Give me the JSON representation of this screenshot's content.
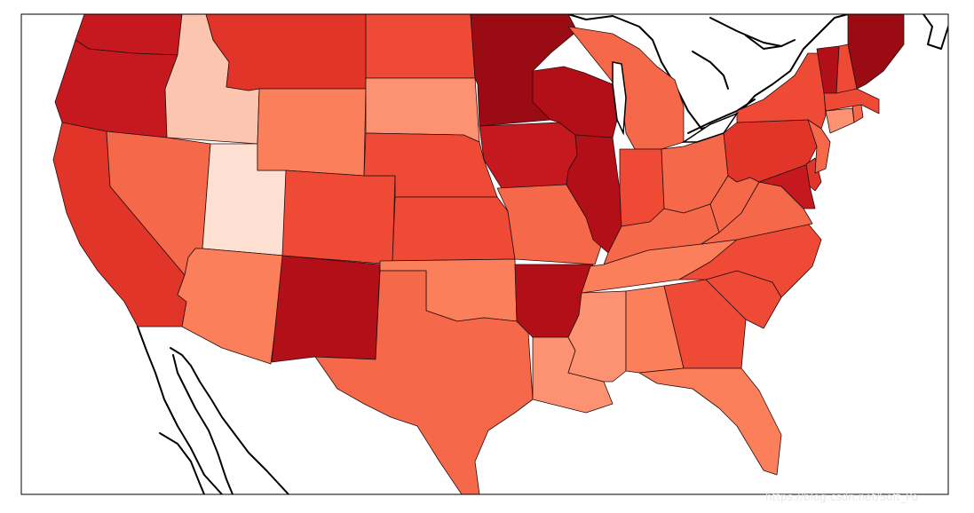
{
  "map": {
    "type": "choropleth",
    "region": "contiguous-united-states",
    "colormap": "Reds",
    "colors": {
      "level1": "#fee0d2",
      "level2": "#fcc5b0",
      "level3": "#fc9272",
      "level4": "#fb7f5b",
      "level5": "#f5694a",
      "level6": "#ef4a36",
      "level7": "#e2352a",
      "level8": "#c6181f",
      "level9": "#b30f18",
      "level10": "#9a0b13"
    },
    "states": [
      {
        "id": "WA",
        "level": "level8"
      },
      {
        "id": "OR",
        "level": "level8"
      },
      {
        "id": "CA",
        "level": "level7"
      },
      {
        "id": "ID",
        "level": "level2"
      },
      {
        "id": "NV",
        "level": "level5"
      },
      {
        "id": "UT",
        "level": "level1"
      },
      {
        "id": "AZ",
        "level": "level4"
      },
      {
        "id": "MT",
        "level": "level7"
      },
      {
        "id": "WY",
        "level": "level4"
      },
      {
        "id": "CO",
        "level": "level6"
      },
      {
        "id": "NM",
        "level": "level9"
      },
      {
        "id": "ND",
        "level": "level6"
      },
      {
        "id": "SD",
        "level": "level3"
      },
      {
        "id": "NE",
        "level": "level6"
      },
      {
        "id": "KS",
        "level": "level6"
      },
      {
        "id": "OK",
        "level": "level4"
      },
      {
        "id": "TX",
        "level": "level5"
      },
      {
        "id": "MN",
        "level": "level10"
      },
      {
        "id": "IA",
        "level": "level8"
      },
      {
        "id": "MO",
        "level": "level5"
      },
      {
        "id": "AR",
        "level": "level9"
      },
      {
        "id": "LA",
        "level": "level3"
      },
      {
        "id": "WI",
        "level": "level9"
      },
      {
        "id": "IL",
        "level": "level9"
      },
      {
        "id": "MI",
        "level": "level5"
      },
      {
        "id": "IN",
        "level": "level6"
      },
      {
        "id": "OH",
        "level": "level5"
      },
      {
        "id": "KY",
        "level": "level5"
      },
      {
        "id": "TN",
        "level": "level4"
      },
      {
        "id": "MS",
        "level": "level3"
      },
      {
        "id": "AL",
        "level": "level4"
      },
      {
        "id": "GA",
        "level": "level6"
      },
      {
        "id": "FL",
        "level": "level4"
      },
      {
        "id": "SC",
        "level": "level6"
      },
      {
        "id": "NC",
        "level": "level6"
      },
      {
        "id": "VA",
        "level": "level5"
      },
      {
        "id": "WV",
        "level": "level5"
      },
      {
        "id": "PA",
        "level": "level7"
      },
      {
        "id": "NY",
        "level": "level6"
      },
      {
        "id": "MD",
        "level": "level8"
      },
      {
        "id": "DE",
        "level": "level7"
      },
      {
        "id": "NJ",
        "level": "level5"
      },
      {
        "id": "CT",
        "level": "level3"
      },
      {
        "id": "RI",
        "level": "level5"
      },
      {
        "id": "MA",
        "level": "level6"
      },
      {
        "id": "VT",
        "level": "level9"
      },
      {
        "id": "NH",
        "level": "level6"
      },
      {
        "id": "ME",
        "level": "level10"
      }
    ]
  },
  "watermark": "https://blog.csdn.net/Soft_Po"
}
